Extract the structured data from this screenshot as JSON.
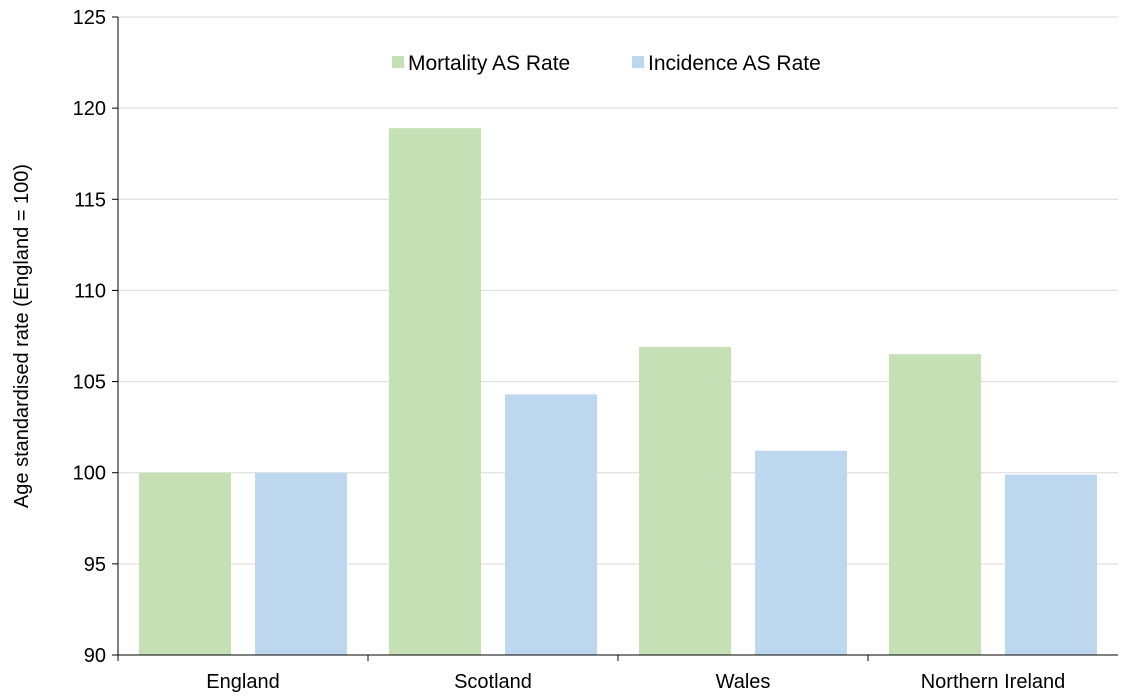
{
  "chart_data": {
    "type": "bar",
    "title": "",
    "xlabel": "",
    "ylabel": "Age standardised rate (England = 100)",
    "categories": [
      "England",
      "Scotland",
      "Wales",
      "Northern Ireland"
    ],
    "series": [
      {
        "name": "Mortality AS Rate",
        "values": [
          100.0,
          118.9,
          106.9,
          106.5
        ],
        "color": "#c5e0b4"
      },
      {
        "name": "Incidence AS Rate",
        "values": [
          100.0,
          104.3,
          101.2,
          99.9
        ],
        "color": "#bdd7ee"
      }
    ],
    "ylim": [
      90,
      125
    ],
    "yticks": [
      "90",
      "95",
      "100",
      "105",
      "110",
      "115",
      "120",
      "125"
    ],
    "grid": true,
    "legend_position": "top-center"
  }
}
